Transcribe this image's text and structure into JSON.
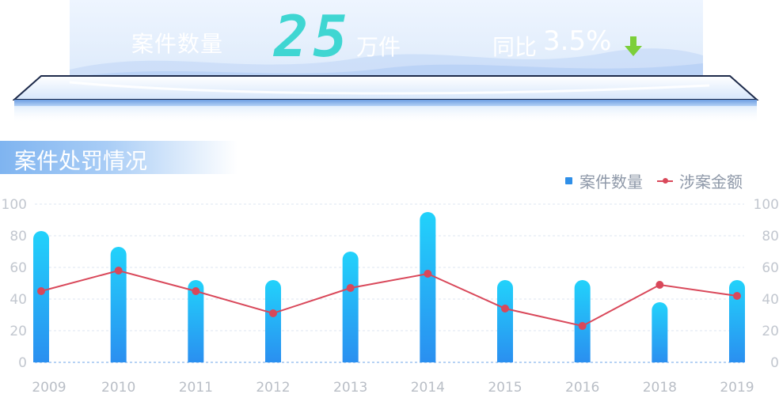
{
  "kpi": {
    "label": "案件数量",
    "value": "25",
    "unit": "万件",
    "compare_label": "同比",
    "compare_value": "3.5%",
    "trend": "down",
    "value_color": "#3fd6d2",
    "arrow_color": "#7ccf3a"
  },
  "section": {
    "title": "案件处罚情况"
  },
  "legend": {
    "bar": "案件数量",
    "line": "涉案金额"
  },
  "chart_data": {
    "type": "bar",
    "categories": [
      "2009",
      "2010",
      "2011",
      "2012",
      "2013",
      "2014",
      "2015",
      "2016",
      "2018",
      "2019"
    ],
    "series": [
      {
        "name": "案件数量",
        "type": "bar",
        "values": [
          83,
          73,
          52,
          52,
          70,
          95,
          52,
          52,
          38,
          52
        ],
        "color": "#2a8ff0"
      },
      {
        "name": "涉案金额",
        "type": "line",
        "values": [
          45,
          58,
          45,
          31,
          47,
          56,
          34,
          23,
          49,
          42
        ],
        "color": "#d9485a"
      }
    ],
    "y_left": {
      "min": 0,
      "max": 100,
      "ticks": [
        0,
        20,
        40,
        60,
        80,
        100
      ]
    },
    "y_right": {
      "min": 0,
      "max": 100,
      "ticks": [
        0,
        20,
        40,
        60,
        80,
        100
      ]
    },
    "grid": true,
    "legend_position": "top-right"
  }
}
